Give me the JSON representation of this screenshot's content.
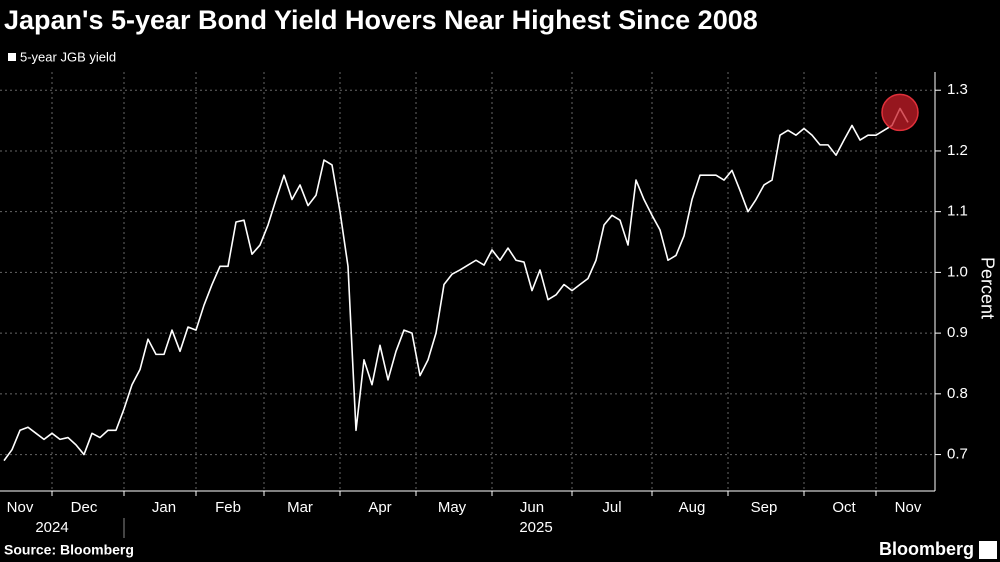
{
  "chart_data": {
    "type": "line",
    "title": "Japan's 5-year Bond Yield Hovers Near Highest Since 2008",
    "y_label": "Percent",
    "source": "Source: Bloomberg",
    "brand": "Bloomberg",
    "x_years": [
      "2024",
      "2025"
    ],
    "categories": [
      null,
      null,
      "Nov",
      null,
      null,
      null,
      null,
      null,
      null,
      null,
      "Dec",
      null,
      null,
      null,
      null,
      null,
      null,
      null,
      null,
      null,
      "Jan",
      null,
      null,
      null,
      null,
      null,
      null,
      null,
      "Feb",
      null,
      null,
      null,
      null,
      null,
      null,
      null,
      null,
      "Mar",
      null,
      null,
      null,
      null,
      null,
      null,
      null,
      null,
      null,
      "Apr",
      null,
      null,
      null,
      null,
      null,
      null,
      null,
      null,
      "May",
      null,
      null,
      null,
      null,
      null,
      null,
      null,
      null,
      null,
      "Jun",
      null,
      null,
      null,
      null,
      null,
      null,
      null,
      null,
      null,
      "Jul",
      null,
      null,
      null,
      null,
      null,
      null,
      null,
      null,
      null,
      "Aug",
      null,
      null,
      null,
      null,
      null,
      null,
      null,
      null,
      "Sep",
      null,
      null,
      null,
      null,
      null,
      null,
      null,
      null,
      null,
      "Oct",
      null,
      null,
      null,
      null,
      null,
      null,
      null,
      "Nov"
    ],
    "series": [
      {
        "name": "5-year JGB yield",
        "color": "#ffffff",
        "values": [
          0.69,
          0.708,
          0.74,
          0.745,
          0.735,
          0.725,
          0.735,
          0.725,
          0.728,
          0.716,
          0.7,
          0.735,
          0.728,
          0.74,
          0.74,
          0.775,
          0.815,
          0.84,
          0.89,
          0.865,
          0.865,
          0.905,
          0.87,
          0.91,
          0.905,
          0.946,
          0.98,
          1.01,
          1.01,
          1.083,
          1.086,
          1.03,
          1.045,
          1.078,
          1.12,
          1.16,
          1.12,
          1.144,
          1.11,
          1.127,
          1.185,
          1.177,
          1.1,
          1.01,
          0.74,
          0.856,
          0.815,
          0.88,
          0.823,
          0.87,
          0.905,
          0.9,
          0.83,
          0.856,
          0.9,
          0.98,
          0.997,
          1.004,
          1.012,
          1.02,
          1.012,
          1.037,
          1.02,
          1.04,
          1.02,
          1.017,
          0.97,
          1.004,
          0.955,
          0.963,
          0.98,
          0.97,
          0.98,
          0.99,
          1.02,
          1.078,
          1.094,
          1.086,
          1.045,
          1.152,
          1.12,
          1.094,
          1.07,
          1.02,
          1.028,
          1.06,
          1.12,
          1.16,
          1.16,
          1.16,
          1.152,
          1.168,
          1.135,
          1.1,
          1.12,
          1.144,
          1.152,
          1.226,
          1.234,
          1.226,
          1.237,
          1.226,
          1.21,
          1.21,
          1.193,
          1.218,
          1.242,
          1.218,
          1.226,
          1.226,
          1.234,
          1.242,
          1.27,
          1.247
        ]
      }
    ],
    "ylim": [
      0.64,
      1.33
    ],
    "yticks": [
      0.7,
      0.8,
      0.9,
      {
        "value": 1,
        "label": "1.0"
      },
      1.1,
      1.2,
      1.3
    ],
    "grid": true
  }
}
